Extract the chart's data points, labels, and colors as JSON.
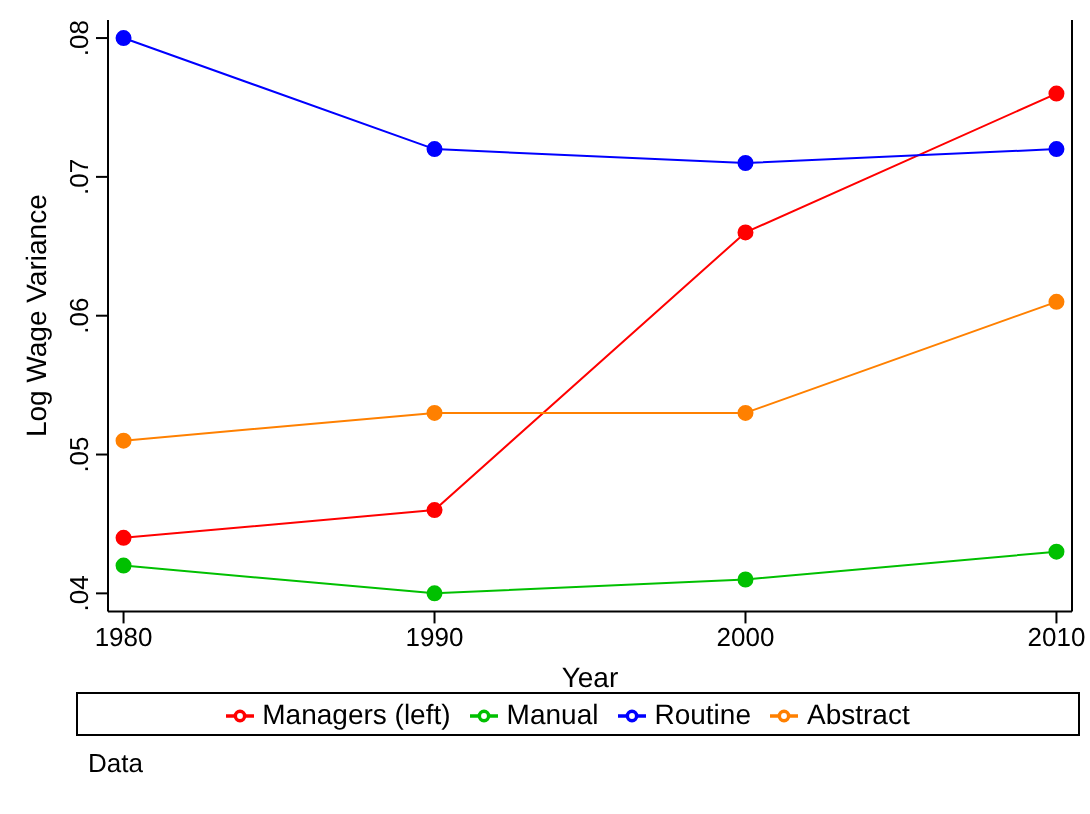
{
  "chart_data": {
    "type": "line",
    "xlabel": "Year",
    "ylabel": "Log Wage Variance",
    "x": [
      1980,
      1990,
      2000,
      2010
    ],
    "series": [
      {
        "name": "Managers (left)",
        "color": "#ff0000",
        "values": [
          0.044,
          0.046,
          0.066,
          0.076
        ]
      },
      {
        "name": "Manual",
        "color": "#00c000",
        "values": [
          0.042,
          0.04,
          0.041,
          0.043
        ]
      },
      {
        "name": "Routine",
        "color": "#0000ff",
        "values": [
          0.08,
          0.072,
          0.071,
          0.072
        ]
      },
      {
        "name": "Abstract",
        "color": "#ff8000",
        "values": [
          0.051,
          0.053,
          0.053,
          0.061
        ]
      }
    ],
    "xlim": [
      1979.5,
      2010.5
    ],
    "xticks": [
      1980,
      1990,
      2000,
      2010
    ],
    "ylim": [
      0.0387,
      0.0813
    ],
    "yticks": [
      {
        "value": 0.04,
        "label": ".04"
      },
      {
        "value": 0.05,
        "label": ".05"
      },
      {
        "value": 0.06,
        "label": ".06"
      },
      {
        "value": 0.07,
        "label": ".07"
      },
      {
        "value": 0.08,
        "label": ".08"
      }
    ],
    "marker": "circle",
    "line_style": "solid",
    "grid": false,
    "legend": "bottom",
    "annotations": [
      "Data"
    ]
  }
}
